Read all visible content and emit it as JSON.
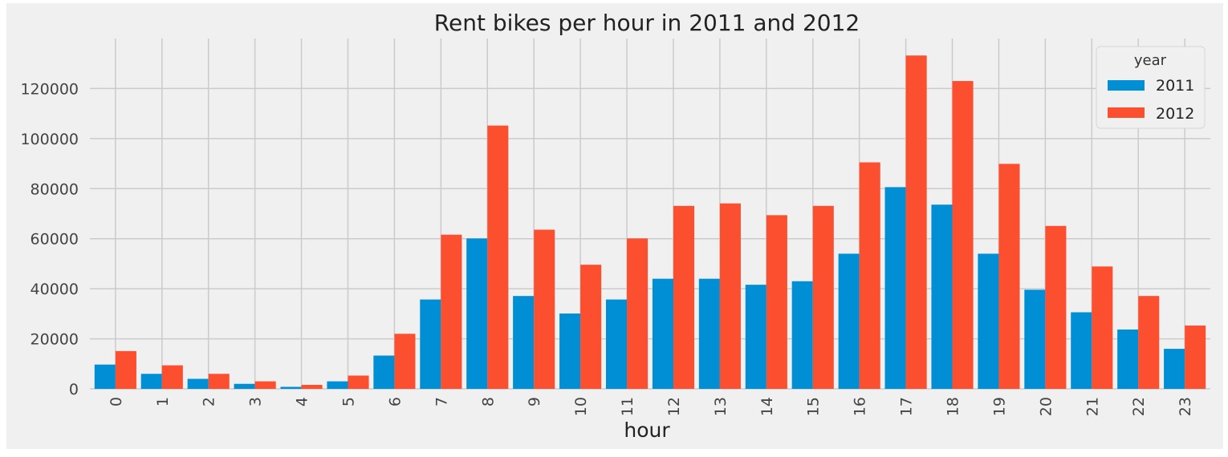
{
  "chart_data": {
    "type": "bar",
    "title": "Rent bikes per hour in 2011 and 2012",
    "xlabel": "hour",
    "ylabel": "",
    "categories": [
      "0",
      "1",
      "2",
      "3",
      "4",
      "5",
      "6",
      "7",
      "8",
      "9",
      "10",
      "11",
      "12",
      "13",
      "14",
      "15",
      "16",
      "17",
      "18",
      "19",
      "20",
      "21",
      "22",
      "23"
    ],
    "series": [
      {
        "name": "2011",
        "color": "#008fd5",
        "values": [
          9700,
          6000,
          4000,
          2000,
          800,
          3000,
          13300,
          35700,
          60100,
          37100,
          30100,
          35700,
          44000,
          44000,
          41600,
          43000,
          54000,
          80600,
          73600,
          54000,
          39600,
          30600,
          23700,
          16000
        ]
      },
      {
        "name": "2012",
        "color": "#fc4f30",
        "values": [
          15100,
          9400,
          6000,
          3000,
          1600,
          5300,
          22000,
          61600,
          105200,
          63600,
          49600,
          60100,
          73100,
          74100,
          69400,
          73100,
          90500,
          133200,
          123000,
          89900,
          65100,
          48900,
          37100,
          25300
        ]
      }
    ],
    "ylim": [
      0,
      140000
    ],
    "yticks": [
      0,
      20000,
      40000,
      60000,
      80000,
      100000,
      120000
    ],
    "ytick_labels": [
      "0",
      "20000",
      "40000",
      "60000",
      "80000",
      "100000",
      "120000"
    ],
    "grid": true,
    "legend": {
      "title": "year",
      "placement": "top-right"
    },
    "colors": {
      "plot_background": "#f0f0f0",
      "figure_background": "#f0f0f0",
      "grid": "#cbcbcb"
    }
  }
}
